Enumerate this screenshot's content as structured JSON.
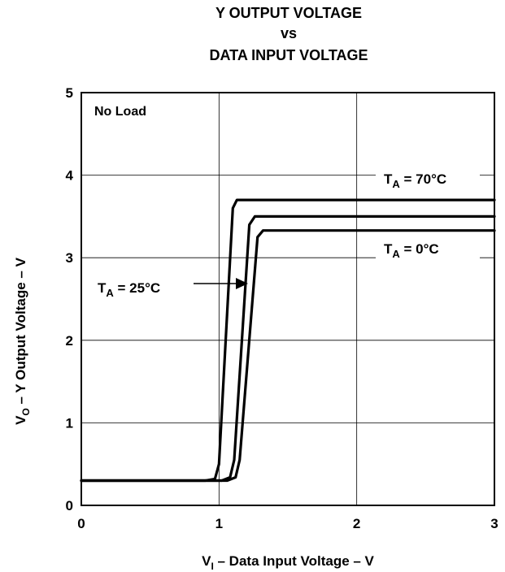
{
  "chart_data": {
    "type": "line",
    "title": [
      "Y OUTPUT VOLTAGE",
      "vs",
      "DATA INPUT VOLTAGE"
    ],
    "xlabel": {
      "main": "V",
      "sub": "I",
      "rest": " – Data Input Voltage – V"
    },
    "ylabel": {
      "main": "V",
      "sub": "O",
      "rest": " – Y Output Voltage – V"
    },
    "xlim": [
      0,
      3
    ],
    "ylim": [
      0,
      5
    ],
    "xticks": [
      0,
      1,
      2,
      3
    ],
    "yticks": [
      0,
      1,
      2,
      3,
      4,
      5
    ],
    "grid": true,
    "annotation_no_load": "No Load",
    "series": [
      {
        "name": {
          "main": "T",
          "sub": "A",
          "rest": " = 70°C"
        },
        "points": [
          [
            0,
            0.3
          ],
          [
            0.9,
            0.3
          ],
          [
            0.97,
            0.32
          ],
          [
            1.0,
            0.5
          ],
          [
            1.1,
            3.6
          ],
          [
            1.13,
            3.7
          ],
          [
            1.2,
            3.7
          ],
          [
            3,
            3.7
          ]
        ]
      },
      {
        "name": {
          "main": "T",
          "sub": "A",
          "rest": " = 25°C"
        },
        "points": [
          [
            0,
            0.3
          ],
          [
            1.02,
            0.3
          ],
          [
            1.08,
            0.34
          ],
          [
            1.11,
            0.55
          ],
          [
            1.22,
            3.4
          ],
          [
            1.26,
            3.5
          ],
          [
            1.32,
            3.5
          ],
          [
            3,
            3.5
          ]
        ]
      },
      {
        "name": {
          "main": "T",
          "sub": "A",
          "rest": " = 0°C"
        },
        "points": [
          [
            0,
            0.3
          ],
          [
            1.06,
            0.3
          ],
          [
            1.12,
            0.34
          ],
          [
            1.15,
            0.55
          ],
          [
            1.28,
            3.25
          ],
          [
            1.32,
            3.33
          ],
          [
            1.38,
            3.33
          ],
          [
            3,
            3.33
          ]
        ]
      }
    ]
  }
}
